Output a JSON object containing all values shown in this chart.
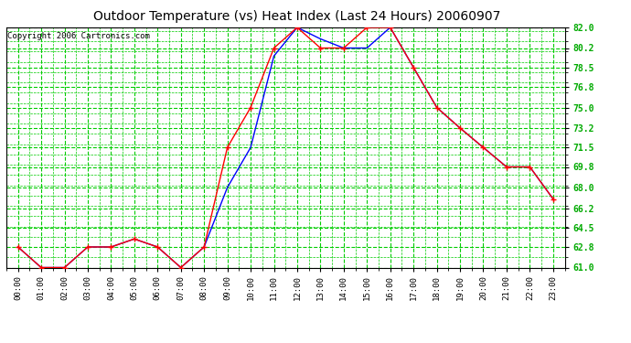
{
  "title": "Outdoor Temperature (vs) Heat Index (Last 24 Hours) 20060907",
  "copyright": "Copyright 2006 Cartronics.com",
  "hours": [
    "00:00",
    "01:00",
    "02:00",
    "03:00",
    "04:00",
    "05:00",
    "06:00",
    "07:00",
    "08:00",
    "09:00",
    "10:00",
    "11:00",
    "12:00",
    "13:00",
    "14:00",
    "15:00",
    "16:00",
    "17:00",
    "18:00",
    "19:00",
    "20:00",
    "21:00",
    "22:00",
    "23:00"
  ],
  "temp": [
    62.8,
    61.0,
    61.0,
    62.8,
    62.8,
    63.5,
    62.8,
    61.0,
    62.8,
    71.5,
    75.0,
    80.2,
    82.0,
    80.2,
    80.2,
    82.0,
    82.0,
    78.5,
    75.0,
    73.2,
    71.5,
    69.8,
    69.8,
    67.0
  ],
  "heat_index": [
    62.8,
    61.0,
    61.0,
    62.8,
    62.8,
    63.5,
    62.8,
    61.0,
    62.8,
    68.0,
    71.5,
    79.5,
    82.0,
    81.0,
    80.2,
    80.2,
    82.0,
    78.5,
    75.0,
    73.2,
    71.5,
    69.8,
    69.8,
    67.0
  ],
  "ylim": [
    61.0,
    82.0
  ],
  "yticks": [
    61.0,
    62.8,
    64.5,
    66.2,
    68.0,
    69.8,
    71.5,
    73.2,
    75.0,
    76.8,
    78.5,
    80.2,
    82.0
  ],
  "temp_color": "#ff0000",
  "heat_index_color": "#0000ff",
  "bg_color": "#ffffff",
  "grid_color": "#00cc00",
  "title_color": "#000000",
  "title_fontsize": 10,
  "copyright_fontsize": 6.5
}
